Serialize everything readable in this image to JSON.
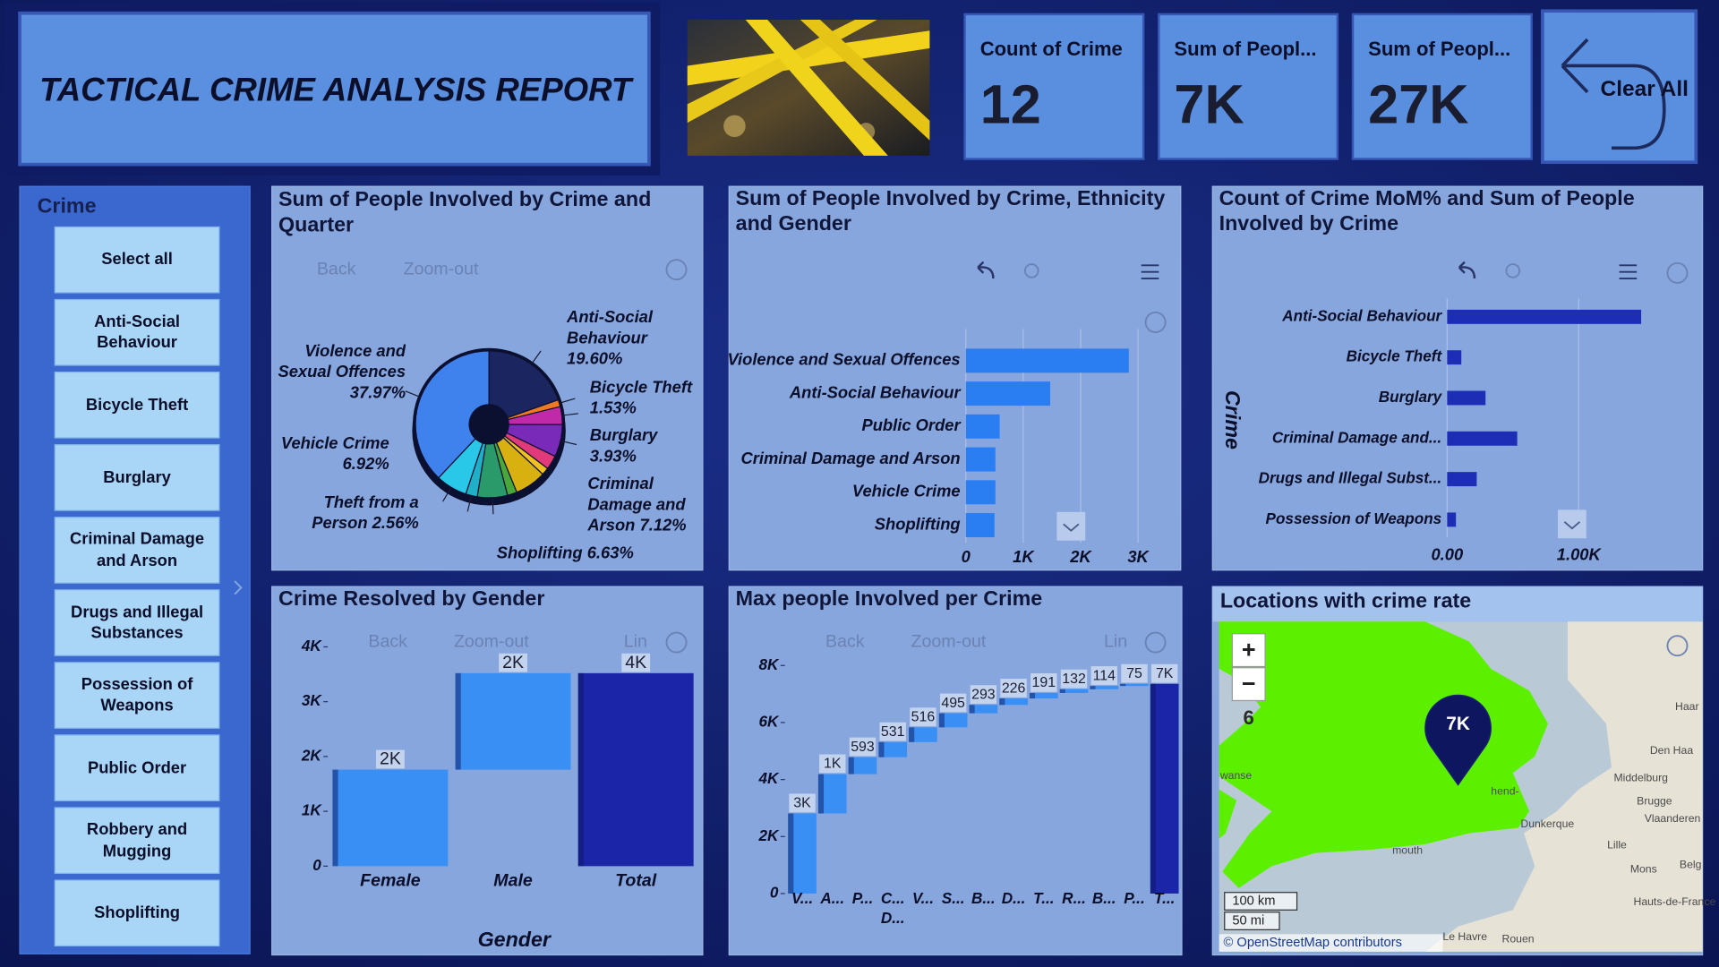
{
  "header": {
    "title": "TACTICAL CRIME ANALYSIS REPORT",
    "clear_button": "Clear All"
  },
  "kpis": [
    {
      "label": "Count of Crime",
      "value": "12"
    },
    {
      "label": "Sum of Peopl...",
      "value": "7K"
    },
    {
      "label": "Sum of Peopl...",
      "value": "27K"
    }
  ],
  "slicer": {
    "title": "Crime",
    "items": [
      "Select all",
      "Anti-Social Behaviour",
      "Bicycle Theft",
      "Burglary",
      "Criminal Damage and Arson",
      "Drugs and Illegal Substances",
      "Possession of Weapons",
      "Public Order",
      "Robbery and Mugging",
      "Shoplifting"
    ]
  },
  "chart_data": [
    {
      "type": "pie",
      "title": "Sum of People Involved by Crime and Quarter",
      "toolbar": [
        "Back",
        "Zoom-out"
      ],
      "categories": [
        "Anti-Social Behaviour",
        "Bicycle Theft",
        "Burglary",
        "Criminal Damage and Arson",
        null,
        null,
        null,
        null,
        "Shoplifting",
        "Theft from a Person",
        "Vehicle Crime",
        "Violence and Sexual Offences"
      ],
      "values": [
        19.6,
        1.53,
        3.93,
        7.12,
        3.1,
        1.64,
        6.9,
        2.1,
        6.63,
        2.56,
        6.92,
        37.97
      ],
      "value_labels": [
        "19.60%",
        "1.53%",
        "3.93%",
        "7.12%",
        null,
        null,
        null,
        null,
        "6.63%",
        "2.56%",
        "6.92%",
        "37.97%"
      ],
      "colors": [
        "#1b2560",
        "#f07a22",
        "#c02aa8",
        "#7a2ab8",
        "#e03a7a",
        "#f0c020",
        "#d8b010",
        "#4aa83a",
        "#2a9a6a",
        "#1fb0c8",
        "#2ac8e8",
        "#3f82ee"
      ]
    },
    {
      "type": "hbar",
      "title": "Sum of People Involved by Crime, Ethnicity and Gender",
      "categories": [
        "Violence and Sexual Offences",
        "Anti-Social Behaviour",
        "Public Order",
        "Criminal Damage and Arson",
        "Vehicle Crime",
        "Shoplifting"
      ],
      "values": [
        2840,
        1470,
        590,
        515,
        515,
        500
      ],
      "color": "#2b7ef2",
      "xlim": [
        0,
        3400
      ],
      "xticks": [
        0,
        {
          "value": 1000,
          "label": "1K"
        },
        {
          "value": 2000,
          "label": "2K"
        },
        {
          "value": 3000,
          "label": "3K"
        }
      ],
      "grid": true
    },
    {
      "type": "hbar",
      "title": "Count of Crime MoM% and Sum of People Involved by Crime",
      "ylabel": "Crime",
      "categories": [
        "Anti-Social Behaviour",
        "Bicycle Theft",
        "Burglary",
        "Criminal Damage and...",
        "Drugs and Illegal Subst...",
        "Possession of Weapons"
      ],
      "values": [
        1475,
        108,
        292,
        533,
        225,
        67
      ],
      "color": "#1e2db5",
      "xlim": [
        0,
        1500
      ],
      "xticks": [
        {
          "value": 0,
          "label": "0.00"
        },
        {
          "value": 1000,
          "label": "1.00K"
        }
      ],
      "grid": true
    },
    {
      "type": "waterfall",
      "title": "Crime Resolved by Gender",
      "toolbar": [
        "Back",
        "Zoom-out",
        "Lin"
      ],
      "xlabel": "Gender",
      "categories": [
        "Female",
        "Male",
        "Total"
      ],
      "values": [
        1760,
        1760,
        3520
      ],
      "value_labels": [
        "2K",
        "2K",
        "4K"
      ],
      "color": "#3a8ff5",
      "total_color": "#1a25a8",
      "ylim": [
        0,
        4100
      ],
      "yticks": [
        0,
        {
          "value": 1000,
          "label": "1K"
        },
        {
          "value": 2000,
          "label": "2K"
        },
        {
          "value": 3000,
          "label": "3K"
        },
        {
          "value": 4000,
          "label": "4K"
        }
      ]
    },
    {
      "type": "waterfall",
      "title": "Max people Involved per Crime",
      "toolbar": [
        "Back",
        "Zoom-out",
        "Lin"
      ],
      "categories": [
        "V...",
        "A...",
        "P...",
        "C... D...",
        "V...",
        "S...",
        "B...",
        "D...",
        "T...",
        "R...",
        "B...",
        "P...",
        "T..."
      ],
      "values": [
        2810,
        1380,
        593,
        531,
        516,
        495,
        293,
        226,
        191,
        132,
        114,
        75,
        7356
      ],
      "value_labels": [
        "3K",
        "1K",
        "593",
        "531",
        "516",
        "495",
        "293",
        "226",
        "191",
        "132",
        "114",
        "75",
        "7K"
      ],
      "color": "#3a8ff5",
      "total_color": "#1a25a8",
      "ylim": [
        0,
        8300
      ],
      "yticks": [
        0,
        {
          "value": 2000,
          "label": "2K"
        },
        {
          "value": 4000,
          "label": "4K"
        },
        {
          "value": 6000,
          "label": "6K"
        },
        {
          "value": 8000,
          "label": "8K"
        }
      ]
    }
  ],
  "map": {
    "title": "Locations with crime rate",
    "marker": "7K",
    "zoom_in": "+",
    "zoom_out": "−",
    "zoom_level": "6",
    "scale": [
      "100 km",
      "50 mi"
    ],
    "attribution": "© OpenStreetMap contributors",
    "places": [
      "Den Haa",
      "Haar",
      "Middelburg",
      "Brugge",
      "Vlaanderen",
      "Dunkerque",
      "Lille",
      "Mons",
      "Hauts-de-France",
      "Le Havre",
      "Rouen",
      "hend-",
      "wanse",
      "mouth",
      "Belg"
    ]
  }
}
